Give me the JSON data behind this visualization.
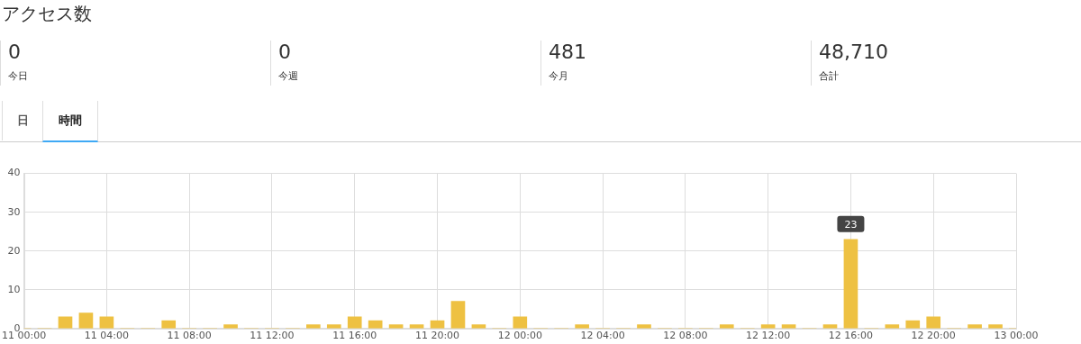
{
  "chart_data": [
    {
      "type": "other",
      "title": "アクセス数",
      "annotations": [
        "0",
        "今日",
        "0",
        "今週",
        "481",
        "今月",
        "48,710",
        "合計"
      ]
    },
    {
      "type": "bar",
      "annotations": [
        "日",
        "時間",
        {
          "text": "23",
          "x": "12 16:00",
          "y": 23
        }
      ],
      "categories": [
        "11 00:00",
        null,
        null,
        null,
        "11 04:00",
        null,
        null,
        null,
        "11 08:00",
        null,
        null,
        null,
        "11 12:00",
        null,
        null,
        null,
        "11 16:00",
        null,
        null,
        null,
        "11 20:00",
        null,
        null,
        null,
        "12 00:00",
        null,
        null,
        null,
        "12 04:00",
        null,
        null,
        null,
        "12 08:00",
        null,
        null,
        null,
        "12 12:00",
        null,
        null,
        null,
        "12 16:00",
        null,
        null,
        null,
        "12 20:00",
        null,
        null,
        null,
        "13 00:00"
      ],
      "values": [
        0,
        0,
        3,
        4,
        3,
        0,
        0,
        2,
        0,
        0,
        1,
        0,
        0,
        0,
        1,
        1,
        3,
        2,
        1,
        1,
        2,
        7,
        1,
        0,
        3,
        0,
        0,
        1,
        0,
        0,
        1,
        0,
        0,
        0,
        1,
        0,
        1,
        1,
        0,
        1,
        23,
        0,
        1,
        2,
        3,
        0,
        1,
        1,
        0
      ],
      "color": "#eec142",
      "ylim": [
        0,
        40
      ],
      "yticks": [
        0,
        10,
        20,
        30,
        40
      ],
      "grid": true,
      "legend": false
    }
  ]
}
